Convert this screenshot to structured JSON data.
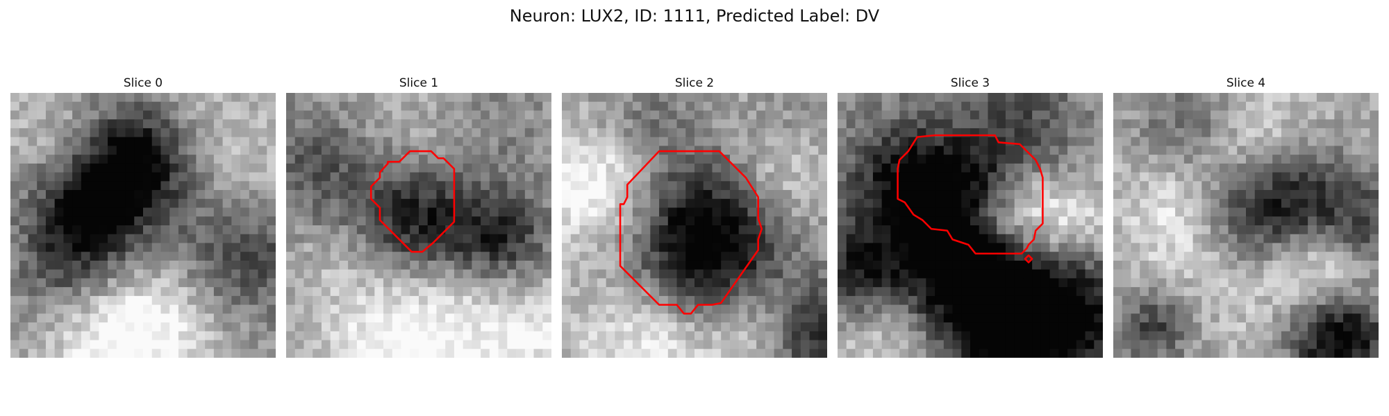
{
  "figure": {
    "title": "Neuron: LUX2, ID: 1111, Predicted Label: DV"
  },
  "colors": {
    "contour": "#ff0000",
    "background": "#ffffff",
    "colormap": "grayscale"
  },
  "slices": [
    {
      "title": "Slice 0",
      "has_contour": false
    },
    {
      "title": "Slice 1",
      "has_contour": true
    },
    {
      "title": "Slice 2",
      "has_contour": true
    },
    {
      "title": "Slice 3",
      "has_contour": true
    },
    {
      "title": "Slice 4",
      "has_contour": false
    }
  ]
}
